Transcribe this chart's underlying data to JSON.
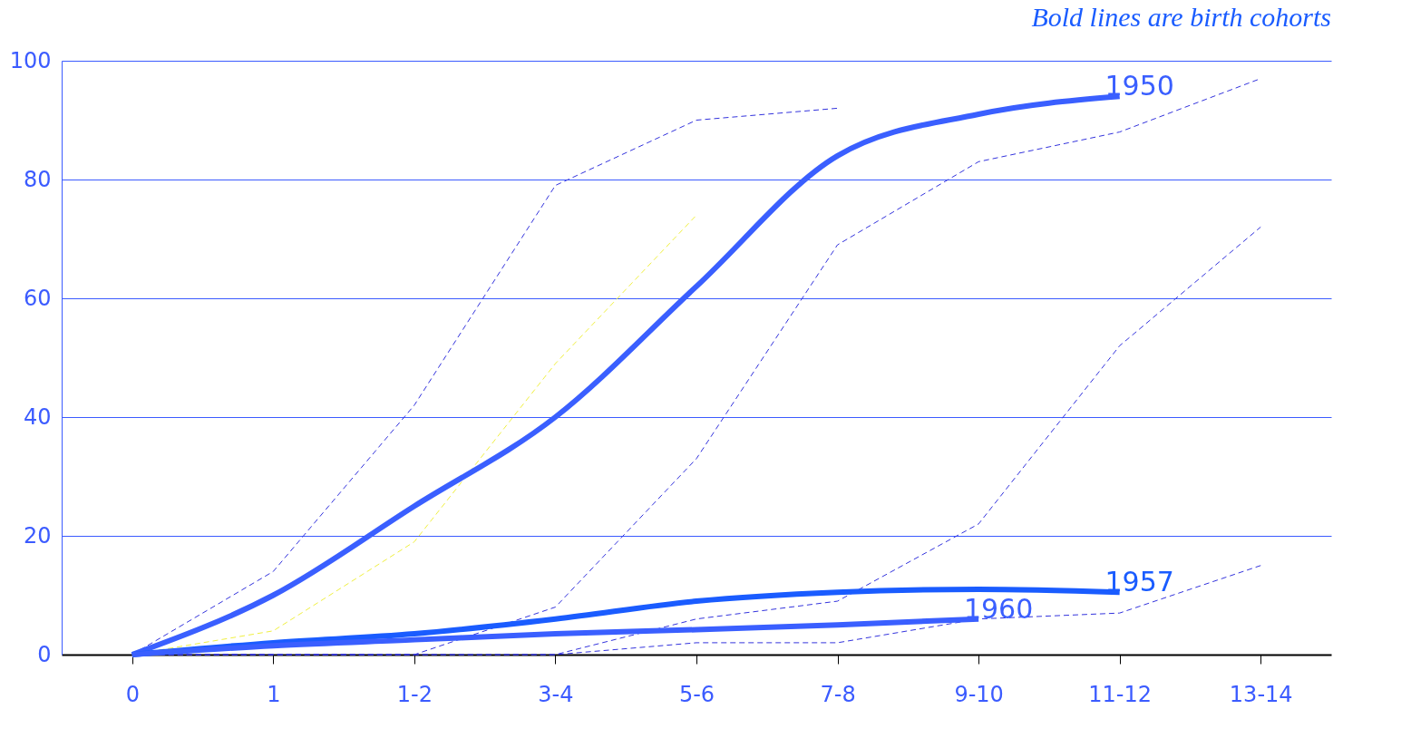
{
  "chart_data": {
    "type": "line",
    "annotations": [
      "Bold lines are birth cohorts"
    ],
    "categories": [
      "0",
      "1",
      "1-2",
      "3-4",
      "5-6",
      "7-8",
      "9-10",
      "11-12",
      "13-14"
    ],
    "ylim": [
      0,
      100
    ],
    "yticks": [
      0,
      20,
      40,
      60,
      80,
      100
    ],
    "grid": "y",
    "legend": false,
    "marker": "none",
    "series": [
      {
        "color": "#3333dd",
        "line_style": "dashed",
        "values": [
          0,
          14,
          42,
          79,
          90,
          92,
          null,
          null,
          null
        ]
      },
      {
        "color": "#f0f040",
        "line_style": "dashed",
        "values": [
          0,
          4,
          19,
          49,
          74,
          null,
          null,
          null,
          null
        ]
      },
      {
        "color": "#3333dd",
        "line_style": "dashed",
        "values": [
          0,
          0,
          0,
          8,
          33,
          69,
          83,
          88,
          97
        ]
      },
      {
        "color": "#3333dd",
        "line_style": "dashed",
        "values": [
          0,
          0,
          0,
          0,
          6,
          9,
          22,
          52,
          72
        ]
      },
      {
        "color": "#3333dd",
        "line_style": "dashed",
        "values": [
          0,
          0,
          0,
          0,
          2,
          2,
          6,
          7,
          15
        ]
      },
      {
        "name": "1950",
        "color": "#3a5fff",
        "line_style": "solid",
        "values": [
          0,
          10,
          25,
          40,
          62,
          84,
          91,
          94,
          null
        ]
      },
      {
        "name": "1957",
        "color": "#1a5cff",
        "line_style": "solid",
        "values": [
          0,
          2,
          3.5,
          6,
          9,
          10.5,
          11,
          10.5,
          null
        ]
      },
      {
        "name": "1960",
        "color": "#3a5fff",
        "line_style": "solid",
        "values": [
          0,
          1.5,
          2.5,
          3.5,
          4.2,
          5,
          6,
          null,
          null
        ]
      }
    ]
  }
}
